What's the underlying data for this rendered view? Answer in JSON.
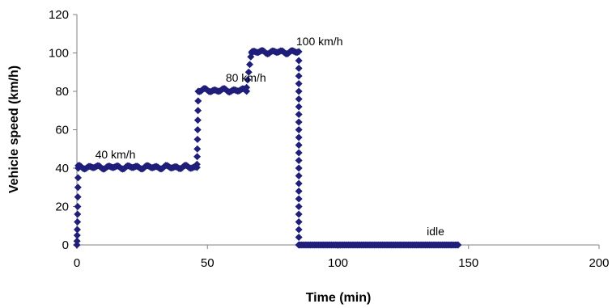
{
  "chart_data": {
    "type": "scatter",
    "xlabel": "Time (min)",
    "ylabel": "Vehicle speed (km/h)",
    "xlim": [
      0,
      200
    ],
    "ylim": [
      0,
      120
    ],
    "x_ticks": [
      "0",
      "50",
      "100",
      "150",
      "200"
    ],
    "y_ticks": [
      "0",
      "20",
      "40",
      "60",
      "80",
      "100",
      "120"
    ],
    "grid": false,
    "marker": "diamond",
    "marker_color": "#1f1f7a",
    "annotations": [
      {
        "text": "40 km/h",
        "x": 7,
        "y": 45
      },
      {
        "text": "80 km/h",
        "x": 57,
        "y": 85
      },
      {
        "text": "100 km/h",
        "x": 84,
        "y": 104
      },
      {
        "text": "idle",
        "x": 134,
        "y": 5
      }
    ],
    "series": [
      {
        "segments": [
          {
            "x_start": 0,
            "x_end": 0.5,
            "y_values": [
              0,
              2,
              5,
              8,
              12,
              16,
              20,
              25,
              30,
              35,
              40
            ]
          },
          {
            "x_start": 0.5,
            "x_end": 46,
            "y_level": 40.5,
            "step": 0.5
          },
          {
            "x_start": 46,
            "x_end": 46.5,
            "y_values": [
              42,
              46,
              50,
              55,
              60,
              65,
              70,
              75,
              80
            ]
          },
          {
            "x_start": 46.5,
            "x_end": 65,
            "y_level": 80.5,
            "step": 0.5
          },
          {
            "x_start": 65,
            "x_end": 67,
            "y_values": [
              82,
              86,
              90,
              94,
              98,
              100
            ]
          },
          {
            "x_start": 67,
            "x_end": 85,
            "y_level": 100.5,
            "step": 0.5
          },
          {
            "x_start": 85,
            "x_end": 85,
            "y_values": [
              96,
              92,
              88,
              84,
              80,
              76,
              72,
              68,
              64,
              60,
              56,
              52,
              48,
              44,
              40,
              36,
              32,
              28,
              24,
              20,
              16,
              12,
              8,
              4,
              0
            ]
          },
          {
            "x_start": 85,
            "x_end": 146,
            "y_level": 0,
            "step": 0.5
          }
        ]
      }
    ]
  }
}
